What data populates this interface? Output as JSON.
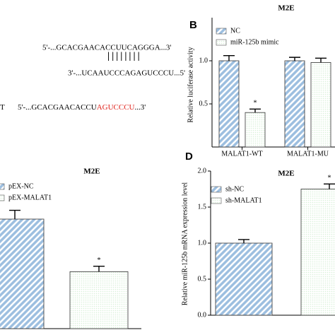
{
  "sequences": {
    "wt": "5'-...GCACGAACACCUUCAGGGA...3'",
    "pairing": "||||||||",
    "mirna": "3'-...UCAAUCCCAGAGUCCCU...5'",
    "mut_label": "T",
    "mut_prefix": "5'-...GCACGAACACCU",
    "mut_site": "AGUCCCU",
    "mut_suffix": "...3'",
    "mut_site_color": "#e0231c"
  },
  "chart_data": [
    {
      "type": "bar",
      "panel_label": "B",
      "title": "M2E",
      "y_label": "Relative luciferase activity",
      "categories": [
        "MALAT1-WT",
        "MALAT1-MU"
      ],
      "series": [
        {
          "name": "NC",
          "color": "#9dbfe0",
          "pattern": "hatch",
          "values": [
            1.0,
            1.0
          ],
          "errors": [
            0.06,
            0.04
          ]
        },
        {
          "name": "miR-125b mimic",
          "color": "#d9f0d9",
          "pattern": "dots",
          "values": [
            0.4,
            0.98
          ],
          "errors": [
            0.04,
            0.05
          ],
          "significance": [
            "*",
            null
          ]
        }
      ],
      "ylim": [
        0,
        1.5
      ],
      "yticks": [
        {
          "value": 0.5,
          "label": "0.5"
        },
        {
          "value": 1,
          "label": "1.0"
        }
      ]
    },
    {
      "type": "bar",
      "title": "M2E",
      "categories": [
        null
      ],
      "series": [
        {
          "name": "pEX-NC",
          "color": "#9dbfe0",
          "pattern": "hatch",
          "values": [
            1.0
          ],
          "errors": [
            0.08
          ]
        },
        {
          "name": "pEX-MALAT1",
          "color": "#d9f0d9",
          "pattern": "dots",
          "values": [
            0.52
          ],
          "errors": [
            0.05
          ],
          "significance": [
            "*"
          ]
        }
      ],
      "ylim": [
        0,
        1.0
      ],
      "yticks": []
    },
    {
      "type": "bar",
      "panel_label": "D",
      "title": "M2E",
      "y_label": "Relative miR-125b mRNA expression level",
      "categories": [
        null
      ],
      "series": [
        {
          "name": "sh-NC",
          "color": "#9dbfe0",
          "pattern": "hatch",
          "values": [
            1.0
          ],
          "errors": [
            0.05
          ]
        },
        {
          "name": "sh-MALAT1",
          "color": "#d9f0d9",
          "pattern": "dots",
          "values": [
            1.75
          ],
          "errors": [
            0.07
          ],
          "significance": [
            "*"
          ]
        }
      ],
      "ylim": [
        0,
        2.0
      ],
      "yticks": [
        {
          "value": 0,
          "label": "0.0"
        },
        {
          "value": 0.5,
          "label": "0.5"
        },
        {
          "value": 1,
          "label": "1.0"
        },
        {
          "value": 1.5,
          "label": "1.5"
        },
        {
          "value": 2,
          "label": "2.0"
        }
      ]
    }
  ]
}
